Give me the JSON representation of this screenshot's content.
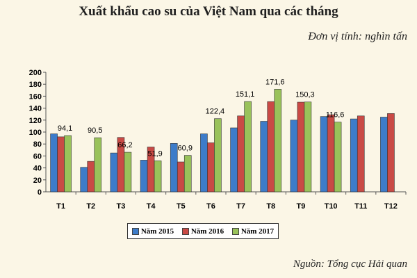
{
  "header": {
    "title": "Xuất khẩu cao su của Việt Nam qua các tháng",
    "unit": "Đơn vị tính: nghìn tấn",
    "source": "Nguồn: Tổng cục Hải quan"
  },
  "chart_data": {
    "type": "bar",
    "title": "Xuất khẩu cao su của Việt Nam qua các tháng",
    "ylabel": "",
    "xlabel": "",
    "ylim": [
      0,
      200
    ],
    "yticks": [
      0,
      20,
      40,
      60,
      80,
      100,
      120,
      140,
      160,
      180,
      200
    ],
    "grid": false,
    "legend_position": "bottom",
    "categories": [
      "T1",
      "T2",
      "T3",
      "T4",
      "T5",
      "T6",
      "T7",
      "T8",
      "T9",
      "T10",
      "T11",
      "T12"
    ],
    "series": [
      {
        "name": "Năm 2015",
        "color": "#3d7cc9",
        "values": [
          97,
          41,
          65,
          53,
          81,
          97,
          107,
          118,
          120,
          126,
          122,
          125
        ]
      },
      {
        "name": "Năm 2016",
        "color": "#c94a45",
        "values": [
          92,
          51,
          91,
          75,
          50,
          82,
          127,
          151,
          150,
          129,
          127,
          131
        ]
      },
      {
        "name": "Năm 2017",
        "color": "#99c25a",
        "values": [
          94.1,
          90.5,
          66.2,
          51.9,
          60.9,
          122.4,
          151.1,
          171.6,
          150.3,
          116.6,
          null,
          null
        ]
      }
    ],
    "data_labels": [
      "94,1",
      "90,5",
      "66,2",
      "51,9",
      "60,9",
      "122,4",
      "151,1",
      "171,6",
      "150,3",
      "116,6",
      "",
      ""
    ]
  }
}
